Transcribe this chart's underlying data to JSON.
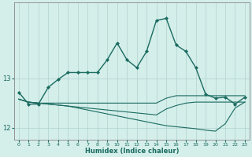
{
  "xlabel": "Humidex (Indice chaleur)",
  "ylabel": "",
  "bg_color": "#d4eeea",
  "grid_color": "#b0d4ce",
  "line_color": "#1a6b60",
  "xlim": [
    -0.5,
    23.5
  ],
  "ylim": [
    11.75,
    14.55
  ],
  "yticks": [
    12,
    13
  ],
  "xticks": [
    0,
    1,
    2,
    3,
    4,
    5,
    6,
    7,
    8,
    9,
    10,
    11,
    12,
    13,
    14,
    15,
    16,
    17,
    18,
    19,
    20,
    21,
    22,
    23
  ],
  "series": [
    {
      "x": [
        0,
        1,
        2,
        3,
        4,
        5,
        6,
        7,
        8,
        9,
        10,
        11,
        12,
        13,
        14,
        15,
        16,
        17,
        18,
        19,
        20,
        21,
        22,
        23
      ],
      "y": [
        12.72,
        12.48,
        12.48,
        12.82,
        12.98,
        13.12,
        13.12,
        13.12,
        13.12,
        13.38,
        13.72,
        13.38,
        13.22,
        13.55,
        14.18,
        14.22,
        13.68,
        13.55,
        13.22,
        12.68,
        12.6,
        12.62,
        12.48,
        12.62
      ],
      "marker": "D",
      "markersize": 2.0,
      "linewidth": 1.0
    },
    {
      "x": [
        0,
        1,
        2,
        3,
        4,
        5,
        6,
        7,
        8,
        9,
        10,
        11,
        12,
        13,
        14,
        15,
        16,
        17,
        18,
        19,
        20,
        21,
        22,
        23
      ],
      "y": [
        12.58,
        12.52,
        12.5,
        12.5,
        12.5,
        12.5,
        12.5,
        12.5,
        12.5,
        12.5,
        12.5,
        12.5,
        12.5,
        12.5,
        12.5,
        12.6,
        12.65,
        12.65,
        12.65,
        12.65,
        12.65,
        12.65,
        12.65,
        12.65
      ],
      "marker": null,
      "markersize": 0,
      "linewidth": 0.8
    },
    {
      "x": [
        0,
        1,
        2,
        3,
        4,
        5,
        6,
        7,
        8,
        9,
        10,
        11,
        12,
        13,
        14,
        15,
        16,
        17,
        18,
        19,
        20,
        21,
        22,
        23
      ],
      "y": [
        12.58,
        12.52,
        12.5,
        12.48,
        12.46,
        12.44,
        12.42,
        12.4,
        12.38,
        12.36,
        12.34,
        12.32,
        12.3,
        12.28,
        12.26,
        12.38,
        12.45,
        12.5,
        12.52,
        12.52,
        12.52,
        12.52,
        12.52,
        12.52
      ],
      "marker": null,
      "markersize": 0,
      "linewidth": 0.8
    },
    {
      "x": [
        0,
        1,
        2,
        3,
        4,
        5,
        6,
        7,
        8,
        9,
        10,
        11,
        12,
        13,
        14,
        15,
        16,
        17,
        18,
        19,
        20,
        21,
        22,
        23
      ],
      "y": [
        12.58,
        12.52,
        12.5,
        12.48,
        12.46,
        12.44,
        12.4,
        12.36,
        12.32,
        12.28,
        12.24,
        12.2,
        12.16,
        12.12,
        12.08,
        12.04,
        12.02,
        12.0,
        11.98,
        11.95,
        11.93,
        12.08,
        12.4,
        12.52
      ],
      "marker": null,
      "markersize": 0,
      "linewidth": 0.8
    }
  ]
}
